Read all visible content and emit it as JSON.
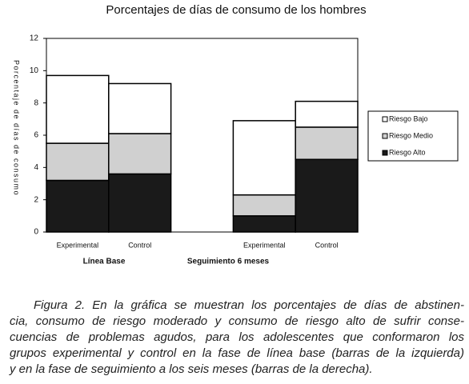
{
  "chart_data": {
    "type": "stacked_bar",
    "title": "Porcentajes de días de consumo de los hombres",
    "ylabel": "Porcentaje de días de consumo",
    "categories": [
      "Experimental",
      "Control",
      null,
      "Experimental",
      "Control"
    ],
    "group_labels": [
      "Línea Base",
      "Seguimiento 6 meses"
    ],
    "series": [
      {
        "name": "Riesgo Alto",
        "color": "#1a1a1a",
        "values": [
          3.2,
          3.6,
          0,
          1.0,
          4.5
        ]
      },
      {
        "name": "Riesgo Medio",
        "color": "#d0d0d0",
        "values": [
          2.3,
          2.5,
          0,
          1.3,
          2.0
        ]
      },
      {
        "name": "Riesgo Bajo",
        "color": "#ffffff",
        "values": [
          4.2,
          3.1,
          0,
          4.6,
          1.6
        ]
      }
    ],
    "ylim": [
      0,
      12
    ],
    "yticks": [
      0,
      2,
      4,
      6,
      8,
      10,
      12
    ],
    "grid": false,
    "legend": "right"
  },
  "caption": [
    "Figura 2. En la gráfica se muestran los porcentajes de días de abstinen-",
    "cia, consumo de riesgo moderado y consumo de riesgo alto de sufrir conse-",
    "cuencias de problemas agudos, para los adolescentes que conformaron los",
    "grupos experimental y control en la fase de línea base (barras de la izquierda)",
    "y en la fase de seguimiento a los seis meses (barras de la derecha)."
  ]
}
